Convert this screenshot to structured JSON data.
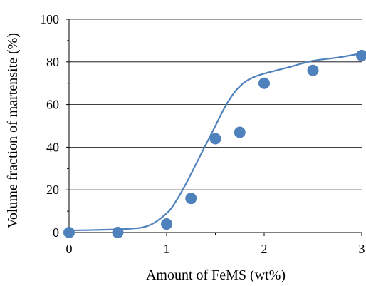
{
  "chart_data": {
    "type": "scatter",
    "xlabel": "Amount of FeMS (wt%)",
    "ylabel": "Volume fraction of martensite (%)",
    "xlim": [
      0,
      3
    ],
    "ylim": [
      0,
      100
    ],
    "x_ticks": [
      0,
      1,
      2,
      3
    ],
    "y_ticks": [
      0,
      20,
      40,
      60,
      80,
      100
    ],
    "grid": "horizontal",
    "legend": "none",
    "colors": {
      "series": "#4f81bd",
      "axis": "#000000",
      "grid": "#000000"
    },
    "series": [
      {
        "type": "scatter",
        "x": [
          0,
          0.5,
          1.0,
          1.25,
          1.5,
          1.75,
          2.0,
          2.5,
          3.0
        ],
        "y": [
          0,
          0,
          4,
          16,
          44,
          47,
          70,
          76,
          83
        ]
      },
      {
        "type": "line",
        "x": [
          0,
          0.5,
          0.8,
          1.0,
          1.1,
          1.2,
          1.3,
          1.4,
          1.5,
          1.6,
          1.7,
          1.8,
          1.9,
          2.0,
          2.25,
          2.5,
          2.75,
          3.0
        ],
        "y": [
          1,
          1.5,
          3,
          9,
          15,
          23,
          32,
          41,
          50,
          59,
          66,
          70.5,
          73,
          74.5,
          77.5,
          80.5,
          82,
          84
        ]
      }
    ]
  }
}
